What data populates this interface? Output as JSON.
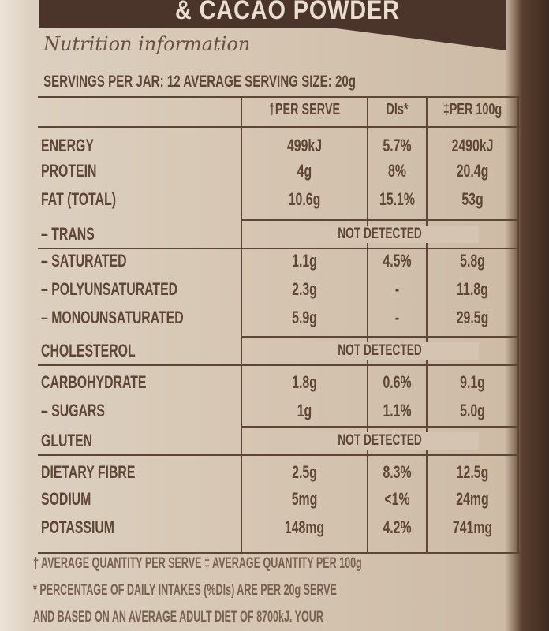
{
  "banner": {
    "text": "& CACAO POWDER"
  },
  "title": "Nutrition information",
  "servings": "SERVINGS PER JAR: 12   AVERAGE SERVING SIZE: 20g",
  "headers": [
    "†PER SERVE",
    "DIs*",
    "‡PER 100g"
  ],
  "rows": [
    {
      "label": "ENERGY",
      "serve": "499kJ",
      "di": "5.7%",
      "p100": "2490kJ"
    },
    {
      "label": "PROTEIN",
      "serve": "4g",
      "di": "8%",
      "p100": "20.4g"
    },
    {
      "label": "FAT (TOTAL)",
      "serve": "10.6g",
      "di": "15.1%",
      "p100": "53g"
    },
    {
      "label": "– TRANS",
      "span": "NOT DETECTED"
    },
    {
      "label": "– SATURATED",
      "serve": "1.1g",
      "di": "4.5%",
      "p100": "5.8g"
    },
    {
      "label": "– POLYUNSATURATED",
      "serve": "2.3g",
      "di": "-",
      "p100": "11.8g"
    },
    {
      "label": "– MONOUNSATURATED",
      "serve": "5.9g",
      "di": "-",
      "p100": "29.5g"
    },
    {
      "label": "CHOLESTEROL",
      "span": "NOT DETECTED"
    },
    {
      "label": "CARBOHYDRATE",
      "serve": "1.8g",
      "di": "0.6%",
      "p100": "9.1g"
    },
    {
      "label": "– SUGARS",
      "serve": "1g",
      "di": "1.1%",
      "p100": "5.0g"
    },
    {
      "label": "GLUTEN",
      "span": "NOT DETECTED"
    },
    {
      "label": "DIETARY FIBRE",
      "serve": "2.5g",
      "di": "8.3%",
      "p100": "12.5g"
    },
    {
      "label": "SODIUM",
      "serve": "5mg",
      "di": "<1%",
      "p100": "24mg"
    },
    {
      "label": "POTASSIUM",
      "serve": "148mg",
      "di": "4.2%",
      "p100": "741mg"
    }
  ],
  "footnotes": [
    "† AVERAGE QUANTITY PER SERVE ‡ AVERAGE QUANTITY PER 100g",
    "* PERCENTAGE OF DAILY INTAKES (%DIs) ARE PER 20g SERVE",
    "AND BASED ON AN AVERAGE ADULT DIET OF 8700kJ. YOUR"
  ]
}
